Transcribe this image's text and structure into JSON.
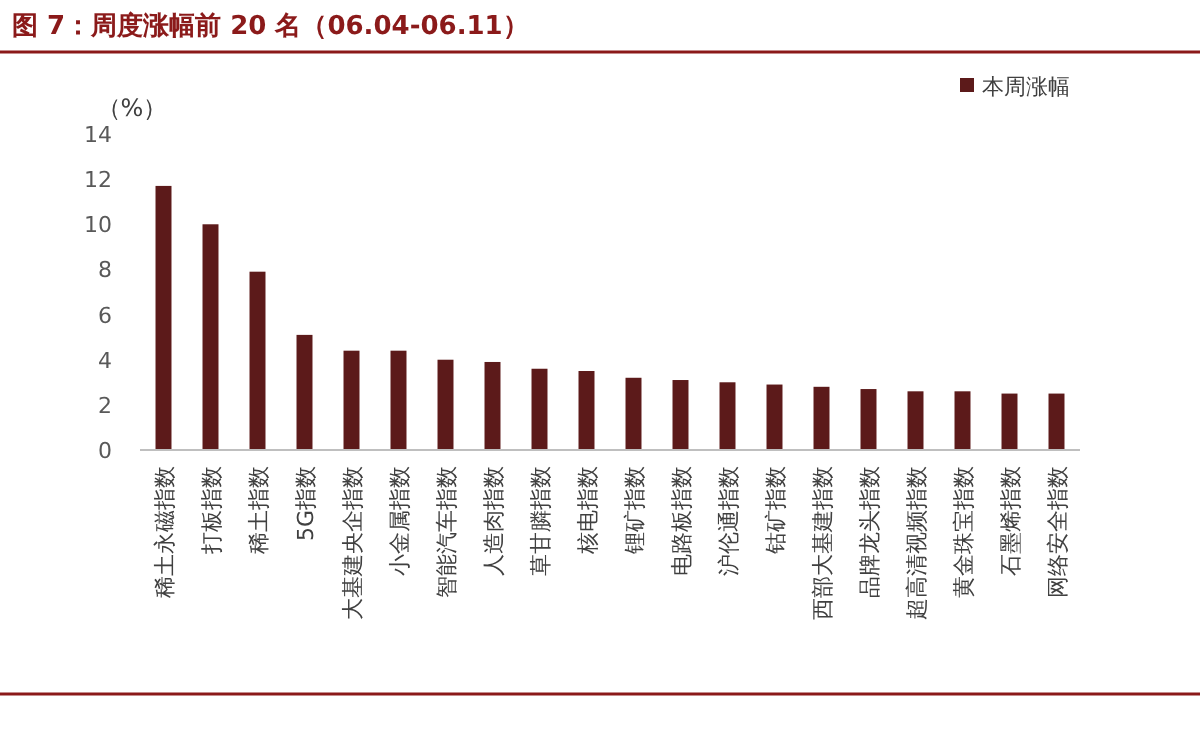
{
  "chart_data": {
    "type": "bar",
    "title": "图 7：周度涨幅前 20 名（06.04-06.11）",
    "ylabel": "（%）",
    "categories": [
      "稀土永磁指数",
      "打板指数",
      "稀土指数",
      "5G指数",
      "大基建央企指数",
      "小金属指数",
      "智能汽车指数",
      "人造肉指数",
      "草甘膦指数",
      "核电指数",
      "锂矿指数",
      "电路板指数",
      "沪伦通指数",
      "钴矿指数",
      "西部大基建指数",
      "品牌龙头指数",
      "超高清视频指数",
      "黄金珠宝指数",
      "石墨烯指数",
      "网络安全指数"
    ],
    "series": [
      {
        "name": "本周涨幅",
        "color": "#5c1a1a",
        "values": [
          11.7,
          10.0,
          7.9,
          5.1,
          4.4,
          4.4,
          4.0,
          3.9,
          3.6,
          3.5,
          3.2,
          3.1,
          3.0,
          2.9,
          2.8,
          2.7,
          2.6,
          2.6,
          2.5,
          2.5
        ]
      }
    ],
    "ylim": [
      0,
      14
    ],
    "yticks": [
      0,
      2,
      4,
      6,
      8,
      10,
      12,
      14
    ],
    "legend": "top right"
  }
}
